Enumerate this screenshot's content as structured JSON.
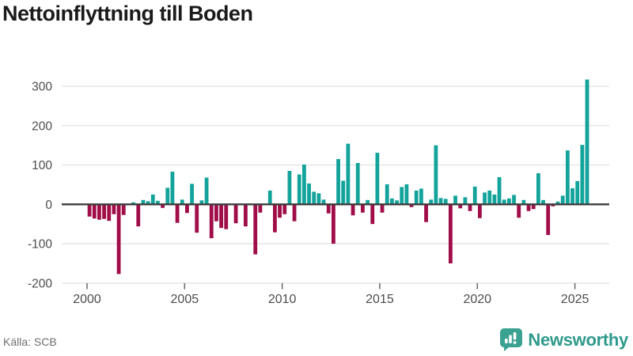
{
  "title": "Nettoinflyttning till Boden",
  "footer": {
    "source_label": "Källa: SCB",
    "brand": "Newsworthy"
  },
  "colors": {
    "positive": "#12A39B",
    "negative": "#A00D49",
    "grid": "#E2E2E2",
    "zero_line": "#3D3D3D",
    "tick_mark": "#6E6E6E",
    "axis_text": "#4C4C4C",
    "title_text": "#1A1A1A",
    "source_text": "#6F6F6F",
    "brand_teal": "#2F9A8C",
    "logo_fill": "#3BA292"
  },
  "chart_data": {
    "type": "bar",
    "title": "Nettoinflyttning till Boden",
    "x_start": "2000Q1",
    "frequency": "quarterly",
    "x_tick_years": [
      2000,
      2005,
      2010,
      2015,
      2020,
      2025
    ],
    "y_ticks": [
      300,
      200,
      100,
      0,
      -100,
      -200
    ],
    "ylim": [
      -210,
      370
    ],
    "grid": "horizontal",
    "legend": "none",
    "unit": "persons",
    "values": [
      -31,
      -36,
      -39,
      -37,
      -42,
      -25,
      -177,
      -27,
      0,
      5,
      -56,
      11,
      8,
      25,
      9,
      -9,
      42,
      83,
      -47,
      12,
      -22,
      52,
      -72,
      10,
      68,
      -86,
      -43,
      -60,
      -63,
      0,
      -48,
      0,
      -56,
      0,
      -127,
      -21,
      0,
      35,
      -71,
      -34,
      -25,
      85,
      -43,
      76,
      101,
      53,
      32,
      28,
      12,
      -23,
      -100,
      115,
      60,
      154,
      -28,
      105,
      -21,
      11,
      -50,
      131,
      -21,
      51,
      15,
      10,
      44,
      51,
      -7,
      35,
      40,
      -45,
      12,
      150,
      16,
      14,
      -150,
      22,
      -10,
      18,
      -17,
      45,
      -35,
      30,
      35,
      25,
      69,
      12,
      15,
      24,
      -34,
      11,
      -17,
      -12,
      79,
      11,
      -78,
      -5,
      7,
      22,
      137,
      41,
      59,
      151,
      317
    ]
  }
}
